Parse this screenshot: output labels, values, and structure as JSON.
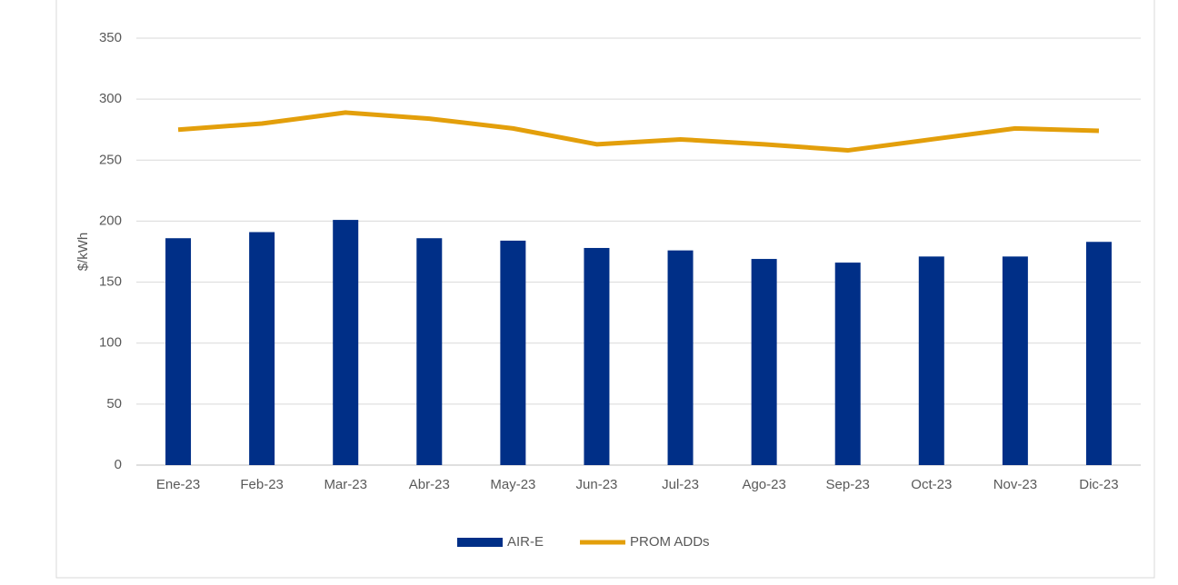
{
  "chart_data": {
    "type": "bar_line",
    "y_label": "$/kWh",
    "categories": [
      "Ene-23",
      "Feb-23",
      "Mar-23",
      "Abr-23",
      "May-23",
      "Jun-23",
      "Jul-23",
      "Ago-23",
      "Sep-23",
      "Oct-23",
      "Nov-23",
      "Dic-23"
    ],
    "series": [
      {
        "name": "AIR-E",
        "type": "bar",
        "color": "#002f87",
        "values": [
          186,
          191,
          201,
          186,
          184,
          178,
          176,
          169,
          166,
          171,
          171,
          183
        ]
      },
      {
        "name": "PROM ADDs",
        "type": "line",
        "color": "#e39f0b",
        "values": [
          275,
          280,
          289,
          284,
          276,
          263,
          267,
          263,
          258,
          267,
          276,
          274
        ]
      }
    ],
    "ylim": [
      0,
      350
    ],
    "yticks": [
      0,
      50,
      100,
      150,
      200,
      250,
      300,
      350
    ],
    "grid": true,
    "legend": "bottom"
  }
}
